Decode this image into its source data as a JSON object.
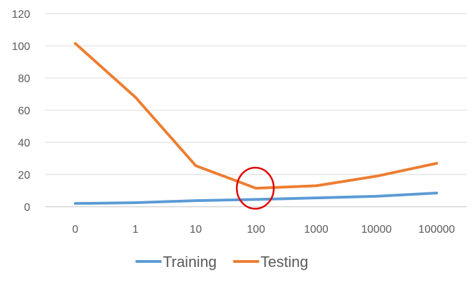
{
  "chart_data": {
    "type": "line",
    "categories": [
      "0",
      "1",
      "10",
      "100",
      "1000",
      "10000",
      "100000"
    ],
    "series": [
      {
        "name": "Training",
        "color": "#5b9bd5",
        "values": [
          2,
          2.5,
          3.8,
          4.5,
          5.5,
          6.5,
          8.5
        ]
      },
      {
        "name": "Testing",
        "color": "#ed7d31",
        "values": [
          101.5,
          68,
          25.5,
          11.5,
          13,
          19,
          27
        ]
      }
    ],
    "ylim": [
      0,
      120
    ],
    "yticks": [
      0,
      20,
      40,
      60,
      80,
      100,
      120
    ],
    "grid": true,
    "legend": "bottom",
    "annotation": {
      "type": "circle",
      "category": "100",
      "value": 11.5,
      "color": "#e00000"
    }
  }
}
